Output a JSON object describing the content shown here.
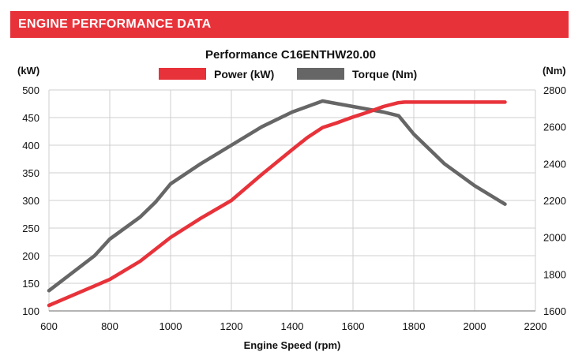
{
  "header": {
    "title": "ENGINE PERFORMANCE DATA"
  },
  "chart_data": {
    "type": "line",
    "title": "Performance C16ENTHW20.00",
    "xlabel": "Engine Speed (rpm)",
    "ylabel_left": "(kW)",
    "ylabel_right": "(Nm)",
    "xlim": [
      600,
      2200
    ],
    "ylim_left": [
      100,
      500
    ],
    "ylim_right": [
      1600,
      2800
    ],
    "x_ticks": [
      600,
      800,
      1000,
      1200,
      1400,
      1600,
      1800,
      2000,
      2200
    ],
    "y_left_ticks": [
      100,
      150,
      200,
      250,
      300,
      350,
      400,
      450,
      500
    ],
    "y_right_ticks": [
      1600,
      1800,
      2000,
      2200,
      2400,
      2600,
      2800
    ],
    "grid": true,
    "legend_position": "top-center",
    "series": [
      {
        "name": "Power (kW)",
        "axis": "left",
        "color": "#e8323a",
        "x": [
          600,
          800,
          900,
          1000,
          1100,
          1200,
          1300,
          1400,
          1450,
          1500,
          1550,
          1600,
          1650,
          1700,
          1750,
          1770,
          1900,
          2000,
          2100
        ],
        "y": [
          110,
          157,
          190,
          233,
          268,
          300,
          347,
          392,
          414,
          432,
          441,
          451,
          460,
          470,
          477,
          478,
          478,
          478,
          478
        ]
      },
      {
        "name": "Torque (Nm)",
        "axis": "right",
        "color": "#666666",
        "x": [
          600,
          750,
          800,
          900,
          950,
          1000,
          1100,
          1200,
          1300,
          1400,
          1500,
          1600,
          1700,
          1750,
          1800,
          1900,
          2000,
          2100
        ],
        "y": [
          1710,
          1900,
          1990,
          2110,
          2190,
          2290,
          2400,
          2500,
          2600,
          2680,
          2740,
          2710,
          2680,
          2660,
          2560,
          2400,
          2280,
          2180
        ]
      }
    ]
  }
}
